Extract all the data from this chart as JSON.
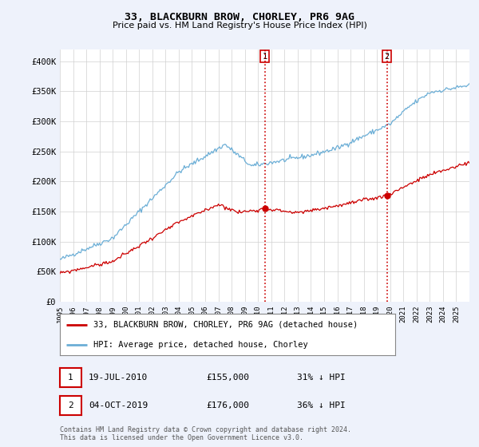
{
  "title": "33, BLACKBURN BROW, CHORLEY, PR6 9AG",
  "subtitle": "Price paid vs. HM Land Registry's House Price Index (HPI)",
  "ylim": [
    0,
    420000
  ],
  "yticks": [
    0,
    50000,
    100000,
    150000,
    200000,
    250000,
    300000,
    350000,
    400000
  ],
  "ytick_labels": [
    "£0",
    "£50K",
    "£100K",
    "£150K",
    "£200K",
    "£250K",
    "£300K",
    "£350K",
    "£400K"
  ],
  "hpi_color": "#6baed6",
  "price_color": "#cc0000",
  "vline_color": "#cc0000",
  "transaction1": {
    "label": "1",
    "date": "19-JUL-2010",
    "price": "£155,000",
    "pct": "31% ↓ HPI"
  },
  "transaction2": {
    "label": "2",
    "date": "04-OCT-2019",
    "price": "£176,000",
    "pct": "36% ↓ HPI"
  },
  "legend_price_label": "33, BLACKBURN BROW, CHORLEY, PR6 9AG (detached house)",
  "legend_hpi_label": "HPI: Average price, detached house, Chorley",
  "footer": "Contains HM Land Registry data © Crown copyright and database right 2024.\nThis data is licensed under the Open Government Licence v3.0.",
  "background_color": "#eef2fb",
  "plot_bg_color": "#ffffff"
}
